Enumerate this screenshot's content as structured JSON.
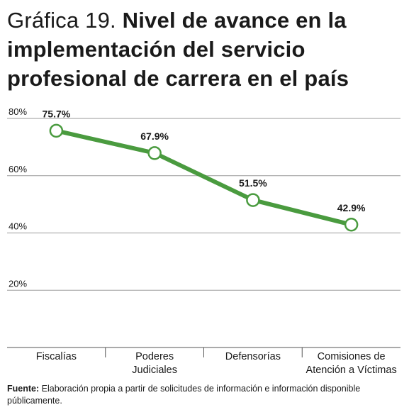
{
  "title": {
    "prefix": "Gráfica 19.",
    "text": "Nivel de avance en la implementación del servicio profesional de carrera en el país"
  },
  "chart_data": {
    "type": "line",
    "categories": [
      "Fiscalías",
      "Poderes Judiciales",
      "Defensorías",
      "Comisiones de Atención a Víctimas"
    ],
    "category_lines": [
      [
        "Fiscalías"
      ],
      [
        "Poderes",
        "Judiciales"
      ],
      [
        "Defensorías"
      ],
      [
        "Comisiones de",
        "Atención a Víctimas"
      ]
    ],
    "series": [
      {
        "values": [
          75.7,
          67.9,
          51.5,
          42.9
        ],
        "labels": [
          "75.7%",
          "67.9%",
          "51.5%",
          "42.9%"
        ],
        "color": "#4a9b3f"
      }
    ],
    "yticks": [
      20,
      40,
      60,
      80
    ],
    "ytick_labels": [
      "20%",
      "40%",
      "60%",
      "80%"
    ],
    "ylim": [
      0,
      80
    ],
    "grid": true,
    "xlabel": "",
    "ylabel": ""
  },
  "source": {
    "label": "Fuente:",
    "text": "Elaboración propia a partir de solicitudes de información e información disponible públicamente."
  }
}
